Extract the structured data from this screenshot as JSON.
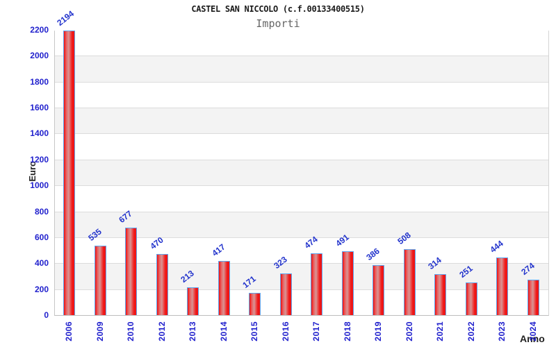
{
  "chart_data": {
    "type": "bar",
    "title": "CASTEL SAN NICCOLO (c.f.00133400515)",
    "subtitle": "Importi",
    "xlabel": "Anno",
    "ylabel": "Euro",
    "categories": [
      "2006",
      "2009",
      "2010",
      "2012",
      "2013",
      "2014",
      "2015",
      "2016",
      "2017",
      "2018",
      "2019",
      "2020",
      "2021",
      "2022",
      "2023",
      "2024"
    ],
    "values": [
      2194,
      535,
      677,
      470,
      213,
      417,
      171,
      323,
      474,
      491,
      386,
      508,
      314,
      251,
      444,
      274
    ],
    "ylim": [
      0,
      2200
    ],
    "ytick_step": 200,
    "grid": true,
    "legend": "none",
    "bar_labels_shown": true,
    "bar_label_rotation_deg": -38,
    "x_label_rotation_deg": -90
  },
  "colors": {
    "tick_label_blue": "#2121cd",
    "value_label_blue": "#2233cc",
    "title_color": "#1a1a1a",
    "subtitle_color": "#666666",
    "axis_title_color": "#222222",
    "band_gray": "#f3f3f3",
    "band_white": "#ffffff",
    "gridline": "#dcdcdc",
    "bar_border_blue": "#5ea7f0",
    "bar_red_edge": "#ef1616",
    "bar_red_mid": "#d89494"
  }
}
